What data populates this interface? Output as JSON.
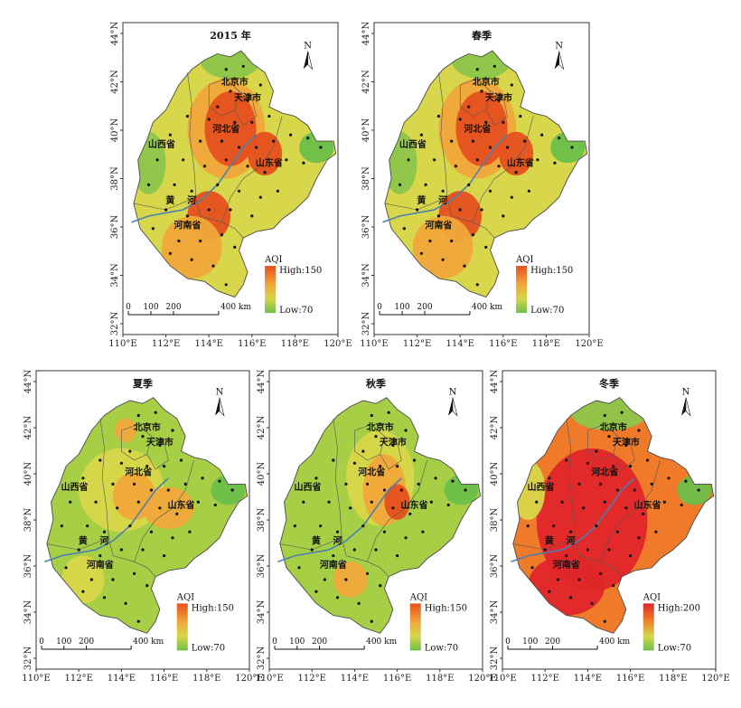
{
  "legend_title": "AQI",
  "scale_bar": {
    "ticks": [
      "0",
      "100",
      "200",
      "400 km"
    ]
  },
  "lon_ticks": [
    "110°E",
    "112°E",
    "114°E",
    "116°E",
    "118°E",
    "120°E"
  ],
  "lat_ticks": [
    "44°N",
    "42°N",
    "40°N",
    "38°N",
    "36°N",
    "34°N",
    "32°N"
  ],
  "labels": {
    "beijing": "北京市",
    "tianjin": "天津市",
    "hebei": "河北省",
    "shanxi": "山西省",
    "shandong": "山东省",
    "henan": "河南省",
    "river_char1": "黄",
    "river_char2": "河"
  },
  "colors": {
    "high": "#e5501f",
    "mid": "#f0a83a",
    "midlow": "#d5d64a",
    "low": "#6cbf4a",
    "very_high": "#e0262a",
    "river": "#4a7fb0"
  },
  "north_arrow": "N",
  "panels": [
    {
      "title": "2015 年",
      "legend_high": "High:150",
      "legend_low": "Low:70",
      "level": "high-central"
    },
    {
      "title": "春季",
      "legend_high": "High:150",
      "legend_low": "Low:70",
      "level": "high-central"
    },
    {
      "title": "夏季",
      "legend_high": "High:150",
      "legend_low": "Low:70",
      "level": "moderate"
    },
    {
      "title": "秋季",
      "legend_high": "High:150",
      "legend_low": "Low:70",
      "level": "moderate-central"
    },
    {
      "title": "冬季",
      "legend_high": "High:200",
      "legend_low": "Low:70",
      "level": "very-high"
    }
  ]
}
